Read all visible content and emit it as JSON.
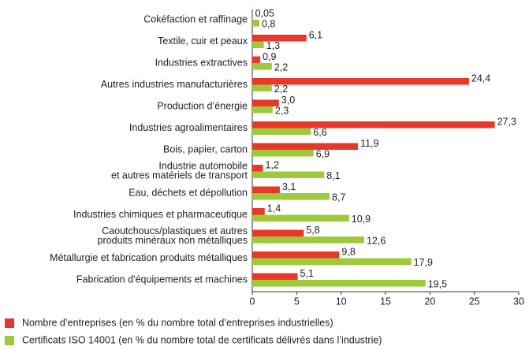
{
  "chart_data": {
    "type": "barh",
    "categories": [
      "Cokéfaction et raffinage",
      "Textile, cuir et peaux",
      "Industries extractives",
      "Autres industries manufacturières",
      "Production d’énergie",
      "Industries agroalimentaires",
      "Bois, papier, carton",
      [
        "Industrie automobile",
        "et autres matériels de transport"
      ],
      "Eau, déchets et dépollution",
      "Industries chimiques et pharmaceutique",
      [
        "Caoutchoucs/plastiques et autres",
        "produits minéraux non métalliques"
      ],
      "Métallurgie et fabrication produits métalliques",
      "Fabrication d'équipements et machines"
    ],
    "series": [
      {
        "name": "Nombre d’entreprises (en % du nombre total d’entreprises industrielles)",
        "color": "#e8382a",
        "values": [
          0.05,
          6.1,
          0.9,
          24.4,
          3.0,
          27.3,
          11.9,
          1.2,
          3.1,
          1.4,
          5.8,
          9.8,
          5.1
        ],
        "value_labels": [
          "0,05",
          "6,1",
          "0,9",
          "24,4",
          "3,0",
          "27,3",
          "11,9",
          "1,2",
          "3,1",
          "1,4",
          "5,8",
          "9,8",
          "5,1"
        ]
      },
      {
        "name": "Certificats ISO 14001 (en % du nombre total de certificats délivrés dans l’industrie)",
        "color": "#9dc93b",
        "values": [
          0.8,
          1.3,
          2.2,
          2.2,
          2.3,
          6.6,
          6.9,
          8.1,
          8.7,
          10.9,
          12.6,
          17.9,
          19.5
        ],
        "value_labels": [
          "0,8",
          "1,3",
          "2,2",
          "2,2",
          "2,3",
          "6,6",
          "6,9",
          "8,1",
          "8,7",
          "10,9",
          "12,6",
          "17,9",
          "19,5"
        ]
      }
    ],
    "xlim": [
      0,
      30
    ],
    "xticks": [
      0,
      5,
      10,
      15,
      20,
      25,
      30
    ],
    "grid": false,
    "legend": "bottom"
  }
}
